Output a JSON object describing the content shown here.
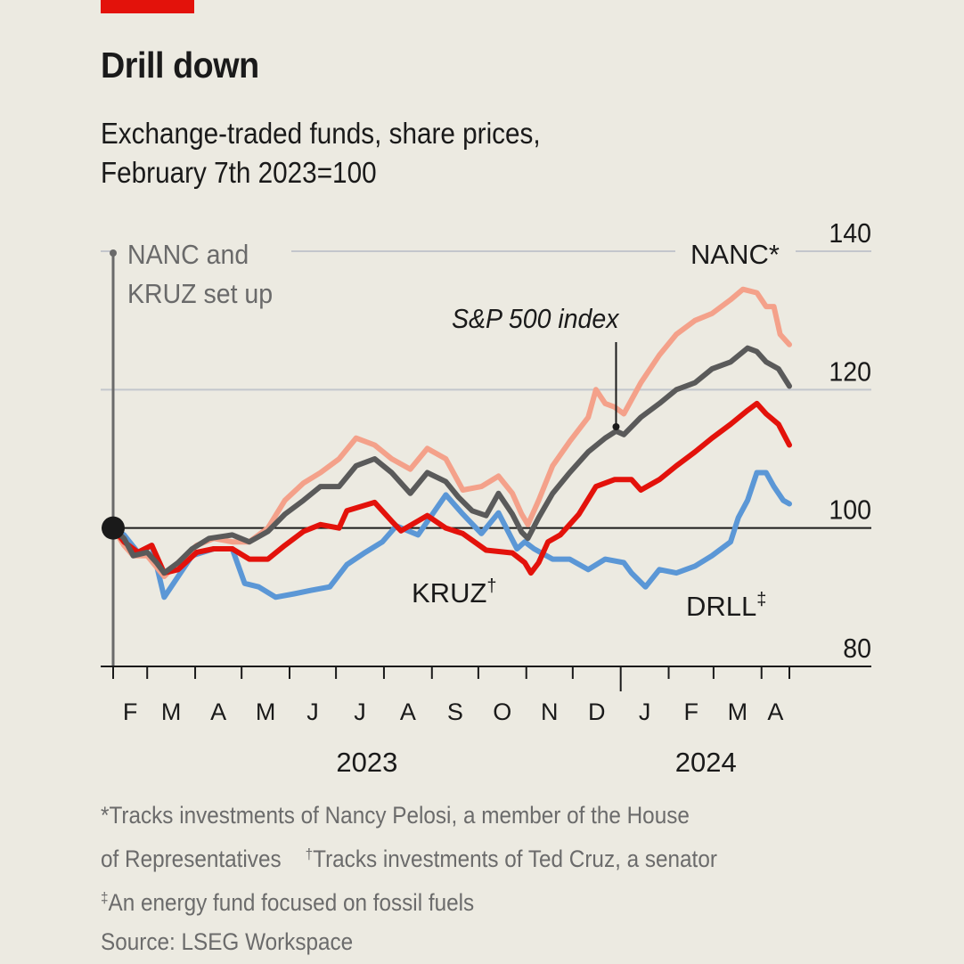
{
  "header": {
    "title": "Drill down",
    "subtitle_line1": "Exchange-traded funds, share prices,",
    "subtitle_line2": "February 7th 2023=100"
  },
  "colors": {
    "accent_bar": "#E3120B",
    "background": "#ECEAE1"
  },
  "footnotes": {
    "nanc_mark": "*",
    "nanc_text": "Tracks investments of Nancy Pelosi, a member of the House",
    "nanc_text_cont": "of Representatives",
    "kruz_mark": "†",
    "kruz_text": "Tracks investments of Ted Cruz, a senator",
    "drll_mark": "‡",
    "drll_text": "An energy fund focused on fossil fuels",
    "source": "Source: LSEG Workspace"
  },
  "chart_data": {
    "type": "line",
    "title": "Drill down",
    "subtitle": "Exchange-traded funds, share prices, February 7th 2023=100",
    "xlabel": "",
    "ylabel": "",
    "start_date": "2023-02-07",
    "x_unit": "days since 2023-02-07",
    "xlim_days": [
      0,
      437
    ],
    "ylim": [
      80,
      140
    ],
    "yticks": [
      80,
      100,
      120,
      140
    ],
    "ytick_labels": [
      "80",
      "100",
      "120",
      "140"
    ],
    "grid": true,
    "baseline": 100,
    "month_ticks": [
      {
        "label": "F",
        "day": 0
      },
      {
        "label": "M",
        "day": 22
      },
      {
        "label": "A",
        "day": 53
      },
      {
        "label": "M",
        "day": 83
      },
      {
        "label": "J",
        "day": 114
      },
      {
        "label": "J",
        "day": 144
      },
      {
        "label": "A",
        "day": 175
      },
      {
        "label": "S",
        "day": 206
      },
      {
        "label": "O",
        "day": 236
      },
      {
        "label": "N",
        "day": 267
      },
      {
        "label": "D",
        "day": 297
      },
      {
        "label": "J",
        "day": 328
      },
      {
        "label": "F",
        "day": 359
      },
      {
        "label": "M",
        "day": 388
      },
      {
        "label": "A",
        "day": 419
      }
    ],
    "axis_end_day": 437,
    "year_labels": [
      {
        "label": "2023",
        "day": 164
      },
      {
        "label": "2024",
        "day": 383
      }
    ],
    "annotation": {
      "text_line1": "NANC and",
      "text_line2": "KRUZ set up",
      "day": 0,
      "value": 100
    },
    "series": [
      {
        "name": "NANC*",
        "label": "NANC*",
        "color": "#F4A18A",
        "points": [
          [
            0,
            100
          ],
          [
            7,
            97.5
          ],
          [
            13,
            96
          ],
          [
            22,
            96
          ],
          [
            33,
            93
          ],
          [
            42,
            95
          ],
          [
            54,
            97.5
          ],
          [
            65,
            98.5
          ],
          [
            77,
            98
          ],
          [
            88,
            98
          ],
          [
            100,
            100
          ],
          [
            111,
            104
          ],
          [
            123,
            106.5
          ],
          [
            134,
            108
          ],
          [
            146,
            110
          ],
          [
            157,
            113
          ],
          [
            169,
            112
          ],
          [
            180,
            110
          ],
          [
            192,
            108.5
          ],
          [
            203,
            111.5
          ],
          [
            215,
            110
          ],
          [
            226,
            105.5
          ],
          [
            238,
            106
          ],
          [
            249,
            107.5
          ],
          [
            258,
            105
          ],
          [
            264,
            102
          ],
          [
            268,
            100.5
          ],
          [
            275,
            104
          ],
          [
            284,
            109
          ],
          [
            295,
            112.5
          ],
          [
            307,
            116
          ],
          [
            312,
            120
          ],
          [
            318,
            118
          ],
          [
            324,
            117.5
          ],
          [
            330,
            116.5
          ],
          [
            341,
            121
          ],
          [
            353,
            125
          ],
          [
            364,
            128
          ],
          [
            376,
            130
          ],
          [
            387,
            131
          ],
          [
            399,
            133
          ],
          [
            407,
            134.5
          ],
          [
            416,
            134
          ],
          [
            422,
            132
          ],
          [
            427,
            132
          ],
          [
            431,
            128
          ],
          [
            437,
            126.5
          ]
        ]
      },
      {
        "name": "S&P 500 index",
        "label": "S&P 500 index",
        "color": "#5A5A5A",
        "points": [
          [
            0,
            100
          ],
          [
            7,
            98.5
          ],
          [
            13,
            96
          ],
          [
            22,
            96.5
          ],
          [
            28,
            95
          ],
          [
            33,
            93.5
          ],
          [
            42,
            95
          ],
          [
            51,
            97
          ],
          [
            62,
            98.5
          ],
          [
            77,
            99
          ],
          [
            88,
            98
          ],
          [
            100,
            99.5
          ],
          [
            111,
            102
          ],
          [
            123,
            104
          ],
          [
            134,
            106
          ],
          [
            146,
            106
          ],
          [
            157,
            109
          ],
          [
            169,
            110
          ],
          [
            180,
            108
          ],
          [
            192,
            105
          ],
          [
            203,
            108
          ],
          [
            215,
            106.7
          ],
          [
            223,
            104.5
          ],
          [
            232,
            102.5
          ],
          [
            241,
            101.8
          ],
          [
            249,
            105
          ],
          [
            258,
            102
          ],
          [
            264,
            99.4
          ],
          [
            268,
            98.5
          ],
          [
            275,
            101.5
          ],
          [
            284,
            105
          ],
          [
            295,
            108
          ],
          [
            307,
            111
          ],
          [
            318,
            113
          ],
          [
            325,
            114
          ],
          [
            330,
            113.5
          ],
          [
            341,
            116
          ],
          [
            353,
            118
          ],
          [
            364,
            120
          ],
          [
            376,
            121
          ],
          [
            387,
            123
          ],
          [
            399,
            124
          ],
          [
            410,
            126
          ],
          [
            416,
            125.5
          ],
          [
            422,
            124
          ],
          [
            430,
            123
          ],
          [
            437,
            120.5
          ]
        ]
      },
      {
        "name": "KRUZ†",
        "label": "KRUZ†",
        "color": "#E3120B",
        "points": [
          [
            0,
            100
          ],
          [
            7,
            98
          ],
          [
            16,
            96.5
          ],
          [
            25,
            97.5
          ],
          [
            33,
            93.5
          ],
          [
            42,
            94
          ],
          [
            54,
            96.5
          ],
          [
            65,
            97
          ],
          [
            77,
            97
          ],
          [
            88,
            95.5
          ],
          [
            100,
            95.5
          ],
          [
            111,
            97.5
          ],
          [
            123,
            99.5
          ],
          [
            134,
            100.5
          ],
          [
            146,
            100
          ],
          [
            151,
            102.5
          ],
          [
            169,
            103.7
          ],
          [
            180,
            101
          ],
          [
            186,
            99.6
          ],
          [
            203,
            101.8
          ],
          [
            215,
            100
          ],
          [
            226,
            99.2
          ],
          [
            241,
            96.8
          ],
          [
            258,
            96.4
          ],
          [
            266,
            95
          ],
          [
            270,
            93.5
          ],
          [
            275,
            95
          ],
          [
            281,
            98
          ],
          [
            289,
            99
          ],
          [
            301,
            102
          ],
          [
            312,
            106
          ],
          [
            324,
            107
          ],
          [
            335,
            107
          ],
          [
            341,
            105.5
          ],
          [
            353,
            107
          ],
          [
            364,
            109
          ],
          [
            376,
            111
          ],
          [
            387,
            113
          ],
          [
            399,
            115
          ],
          [
            410,
            117
          ],
          [
            416,
            118
          ],
          [
            422,
            116.5
          ],
          [
            430,
            115
          ],
          [
            437,
            112
          ]
        ]
      },
      {
        "name": "DRLL‡",
        "label": "DRLL‡",
        "color": "#5B97D6",
        "points": [
          [
            0,
            100
          ],
          [
            7,
            99
          ],
          [
            16,
            96.5
          ],
          [
            25,
            97.5
          ],
          [
            33,
            90
          ],
          [
            39,
            92
          ],
          [
            51,
            96
          ],
          [
            65,
            97
          ],
          [
            77,
            97
          ],
          [
            85,
            92
          ],
          [
            94,
            91.5
          ],
          [
            105,
            90
          ],
          [
            117,
            90.5
          ],
          [
            128,
            91
          ],
          [
            140,
            91.5
          ],
          [
            151,
            94.7
          ],
          [
            163,
            96.5
          ],
          [
            174,
            98
          ],
          [
            183,
            100.3
          ],
          [
            197,
            99
          ],
          [
            215,
            104.8
          ],
          [
            226,
            102
          ],
          [
            229,
            101.3
          ],
          [
            238,
            99.2
          ],
          [
            249,
            102.2
          ],
          [
            261,
            97
          ],
          [
            266,
            98
          ],
          [
            272,
            97
          ],
          [
            284,
            95.5
          ],
          [
            295,
            95.5
          ],
          [
            307,
            94
          ],
          [
            318,
            95.5
          ],
          [
            330,
            95
          ],
          [
            335,
            93.5
          ],
          [
            344,
            91.5
          ],
          [
            353,
            94
          ],
          [
            364,
            93.5
          ],
          [
            376,
            94.5
          ],
          [
            387,
            96
          ],
          [
            399,
            98
          ],
          [
            404,
            101.5
          ],
          [
            410,
            104
          ],
          [
            416,
            108
          ],
          [
            422,
            108
          ],
          [
            427,
            106
          ],
          [
            433,
            104
          ],
          [
            437,
            103.5
          ]
        ]
      }
    ],
    "series_labels": [
      {
        "series": "NANC*",
        "text": "NANC*"
      },
      {
        "series": "S&P 500 index",
        "text": "S&P 500 index",
        "leader_day": 325
      },
      {
        "series": "KRUZ†",
        "text": "KRUZ",
        "mark": "†"
      },
      {
        "series": "DRLL‡",
        "text": "DRLL",
        "mark": "‡"
      }
    ]
  }
}
